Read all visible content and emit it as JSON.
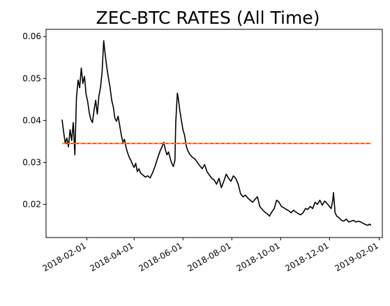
{
  "chart_data": {
    "type": "line",
    "title": "ZEC-BTC RATES (All Time)",
    "xlabel": "",
    "ylabel": "",
    "xlim": [
      "2017-12-12",
      "2019-02-05"
    ],
    "ylim": [
      0.0121,
      0.0617
    ],
    "x_ticks": [
      "2018-02-01",
      "2018-04-01",
      "2018-06-01",
      "2018-08-01",
      "2018-10-01",
      "2018-12-01",
      "2019-02-01"
    ],
    "y_ticks": [
      0.02,
      0.03,
      0.04,
      0.05,
      0.06
    ],
    "y_tick_labels": [
      "0.02",
      "0.03",
      "0.04",
      "0.05",
      "0.06"
    ],
    "grid": false,
    "legend": "none",
    "series": [
      {
        "role": "price",
        "color": "#000000",
        "points": [
          [
            "2018-01-01",
            0.0402
          ],
          [
            "2018-01-03",
            0.0372
          ],
          [
            "2018-01-05",
            0.0345
          ],
          [
            "2018-01-07",
            0.0358
          ],
          [
            "2018-01-09",
            0.0337
          ],
          [
            "2018-01-11",
            0.0378
          ],
          [
            "2018-01-13",
            0.0352
          ],
          [
            "2018-01-15",
            0.0395
          ],
          [
            "2018-01-17",
            0.0318
          ],
          [
            "2018-01-19",
            0.0455
          ],
          [
            "2018-01-21",
            0.0496
          ],
          [
            "2018-01-23",
            0.0478
          ],
          [
            "2018-01-25",
            0.0525
          ],
          [
            "2018-01-27",
            0.0488
          ],
          [
            "2018-01-29",
            0.0505
          ],
          [
            "2018-01-31",
            0.0462
          ],
          [
            "2018-02-02",
            0.0445
          ],
          [
            "2018-02-04",
            0.0418
          ],
          [
            "2018-02-06",
            0.0402
          ],
          [
            "2018-02-08",
            0.0395
          ],
          [
            "2018-02-10",
            0.0425
          ],
          [
            "2018-02-12",
            0.0448
          ],
          [
            "2018-02-14",
            0.0415
          ],
          [
            "2018-02-16",
            0.0458
          ],
          [
            "2018-02-18",
            0.0478
          ],
          [
            "2018-02-20",
            0.0515
          ],
          [
            "2018-02-22",
            0.059
          ],
          [
            "2018-02-24",
            0.0555
          ],
          [
            "2018-02-26",
            0.0525
          ],
          [
            "2018-02-28",
            0.05
          ],
          [
            "2018-03-02",
            0.0478
          ],
          [
            "2018-03-04",
            0.0448
          ],
          [
            "2018-03-06",
            0.0432
          ],
          [
            "2018-03-08",
            0.0405
          ],
          [
            "2018-03-10",
            0.0398
          ],
          [
            "2018-03-12",
            0.041
          ],
          [
            "2018-03-14",
            0.0388
          ],
          [
            "2018-03-16",
            0.0365
          ],
          [
            "2018-03-18",
            0.0348
          ],
          [
            "2018-03-20",
            0.0355
          ],
          [
            "2018-03-22",
            0.0335
          ],
          [
            "2018-03-24",
            0.0322
          ],
          [
            "2018-03-26",
            0.0312
          ],
          [
            "2018-03-28",
            0.0305
          ],
          [
            "2018-03-30",
            0.0295
          ],
          [
            "2018-04-01",
            0.0288
          ],
          [
            "2018-04-03",
            0.0298
          ],
          [
            "2018-04-05",
            0.0278
          ],
          [
            "2018-04-07",
            0.0285
          ],
          [
            "2018-04-09",
            0.0275
          ],
          [
            "2018-04-12",
            0.027
          ],
          [
            "2018-04-15",
            0.0265
          ],
          [
            "2018-04-18",
            0.0268
          ],
          [
            "2018-04-21",
            0.0263
          ],
          [
            "2018-04-24",
            0.0275
          ],
          [
            "2018-04-27",
            0.029
          ],
          [
            "2018-04-30",
            0.0308
          ],
          [
            "2018-05-03",
            0.0325
          ],
          [
            "2018-05-06",
            0.0338
          ],
          [
            "2018-05-08",
            0.0348
          ],
          [
            "2018-05-10",
            0.033
          ],
          [
            "2018-05-12",
            0.0318
          ],
          [
            "2018-05-14",
            0.0325
          ],
          [
            "2018-05-16",
            0.031
          ],
          [
            "2018-05-18",
            0.0298
          ],
          [
            "2018-05-20",
            0.029
          ],
          [
            "2018-05-22",
            0.0305
          ],
          [
            "2018-05-23",
            0.0395
          ],
          [
            "2018-05-24",
            0.043
          ],
          [
            "2018-05-25",
            0.0465
          ],
          [
            "2018-05-26",
            0.0455
          ],
          [
            "2018-05-28",
            0.0425
          ],
          [
            "2018-05-30",
            0.04
          ],
          [
            "2018-06-01",
            0.0378
          ],
          [
            "2018-06-03",
            0.0365
          ],
          [
            "2018-06-05",
            0.034
          ],
          [
            "2018-06-07",
            0.0328
          ],
          [
            "2018-06-10",
            0.0318
          ],
          [
            "2018-06-13",
            0.0312
          ],
          [
            "2018-06-16",
            0.0308
          ],
          [
            "2018-06-19",
            0.03
          ],
          [
            "2018-06-22",
            0.0292
          ],
          [
            "2018-06-25",
            0.0285
          ],
          [
            "2018-06-28",
            0.0295
          ],
          [
            "2018-07-01",
            0.0278
          ],
          [
            "2018-07-04",
            0.027
          ],
          [
            "2018-07-07",
            0.0262
          ],
          [
            "2018-07-10",
            0.0258
          ],
          [
            "2018-07-13",
            0.0248
          ],
          [
            "2018-07-16",
            0.0262
          ],
          [
            "2018-07-19",
            0.024
          ],
          [
            "2018-07-22",
            0.0255
          ],
          [
            "2018-07-25",
            0.0272
          ],
          [
            "2018-07-28",
            0.0262
          ],
          [
            "2018-07-31",
            0.0255
          ],
          [
            "2018-08-03",
            0.0268
          ],
          [
            "2018-08-06",
            0.0262
          ],
          [
            "2018-08-09",
            0.0248
          ],
          [
            "2018-08-12",
            0.0225
          ],
          [
            "2018-08-15",
            0.0218
          ],
          [
            "2018-08-18",
            0.0222
          ],
          [
            "2018-08-21",
            0.0215
          ],
          [
            "2018-08-24",
            0.021
          ],
          [
            "2018-08-27",
            0.0205
          ],
          [
            "2018-08-30",
            0.0212
          ],
          [
            "2018-09-02",
            0.0218
          ],
          [
            "2018-09-05",
            0.0195
          ],
          [
            "2018-09-08",
            0.0188
          ],
          [
            "2018-09-11",
            0.0182
          ],
          [
            "2018-09-14",
            0.0178
          ],
          [
            "2018-09-17",
            0.0172
          ],
          [
            "2018-09-20",
            0.0182
          ],
          [
            "2018-09-23",
            0.019
          ],
          [
            "2018-09-26",
            0.021
          ],
          [
            "2018-09-29",
            0.0205
          ],
          [
            "2018-10-02",
            0.0195
          ],
          [
            "2018-10-05",
            0.0192
          ],
          [
            "2018-10-08",
            0.0188
          ],
          [
            "2018-10-11",
            0.0185
          ],
          [
            "2018-10-14",
            0.018
          ],
          [
            "2018-10-17",
            0.0186
          ],
          [
            "2018-10-20",
            0.0182
          ],
          [
            "2018-10-23",
            0.0178
          ],
          [
            "2018-10-26",
            0.0175
          ],
          [
            "2018-10-29",
            0.018
          ],
          [
            "2018-11-01",
            0.019
          ],
          [
            "2018-11-04",
            0.0188
          ],
          [
            "2018-11-07",
            0.0195
          ],
          [
            "2018-11-10",
            0.019
          ],
          [
            "2018-11-13",
            0.0205
          ],
          [
            "2018-11-16",
            0.02
          ],
          [
            "2018-11-19",
            0.021
          ],
          [
            "2018-11-22",
            0.0198
          ],
          [
            "2018-11-25",
            0.0208
          ],
          [
            "2018-11-28",
            0.0202
          ],
          [
            "2018-12-01",
            0.0195
          ],
          [
            "2018-12-03",
            0.019
          ],
          [
            "2018-12-05",
            0.0208
          ],
          [
            "2018-12-06",
            0.0228
          ],
          [
            "2018-12-08",
            0.018
          ],
          [
            "2018-12-10",
            0.0172
          ],
          [
            "2018-12-13",
            0.0168
          ],
          [
            "2018-12-16",
            0.0162
          ],
          [
            "2018-12-19",
            0.016
          ],
          [
            "2018-12-22",
            0.0165
          ],
          [
            "2018-12-25",
            0.0158
          ],
          [
            "2018-12-28",
            0.016
          ],
          [
            "2018-12-31",
            0.0162
          ],
          [
            "2019-01-03",
            0.0158
          ],
          [
            "2019-01-06",
            0.016
          ],
          [
            "2019-01-09",
            0.0158
          ],
          [
            "2019-01-12",
            0.0155
          ],
          [
            "2019-01-15",
            0.0152
          ],
          [
            "2019-01-18",
            0.015
          ],
          [
            "2019-01-20",
            0.0153
          ],
          [
            "2019-01-22",
            0.015
          ]
        ]
      },
      {
        "role": "mean-line",
        "color": "#ff0000",
        "dashed": false,
        "points": [
          [
            "2018-01-01",
            0.0345
          ],
          [
            "2019-01-22",
            0.0345
          ]
        ]
      },
      {
        "role": "mean-line-dashed",
        "color": "#ff8c00",
        "dashed": true,
        "points": [
          [
            "2018-01-01",
            0.0345
          ],
          [
            "2019-01-22",
            0.0345
          ]
        ]
      }
    ]
  }
}
